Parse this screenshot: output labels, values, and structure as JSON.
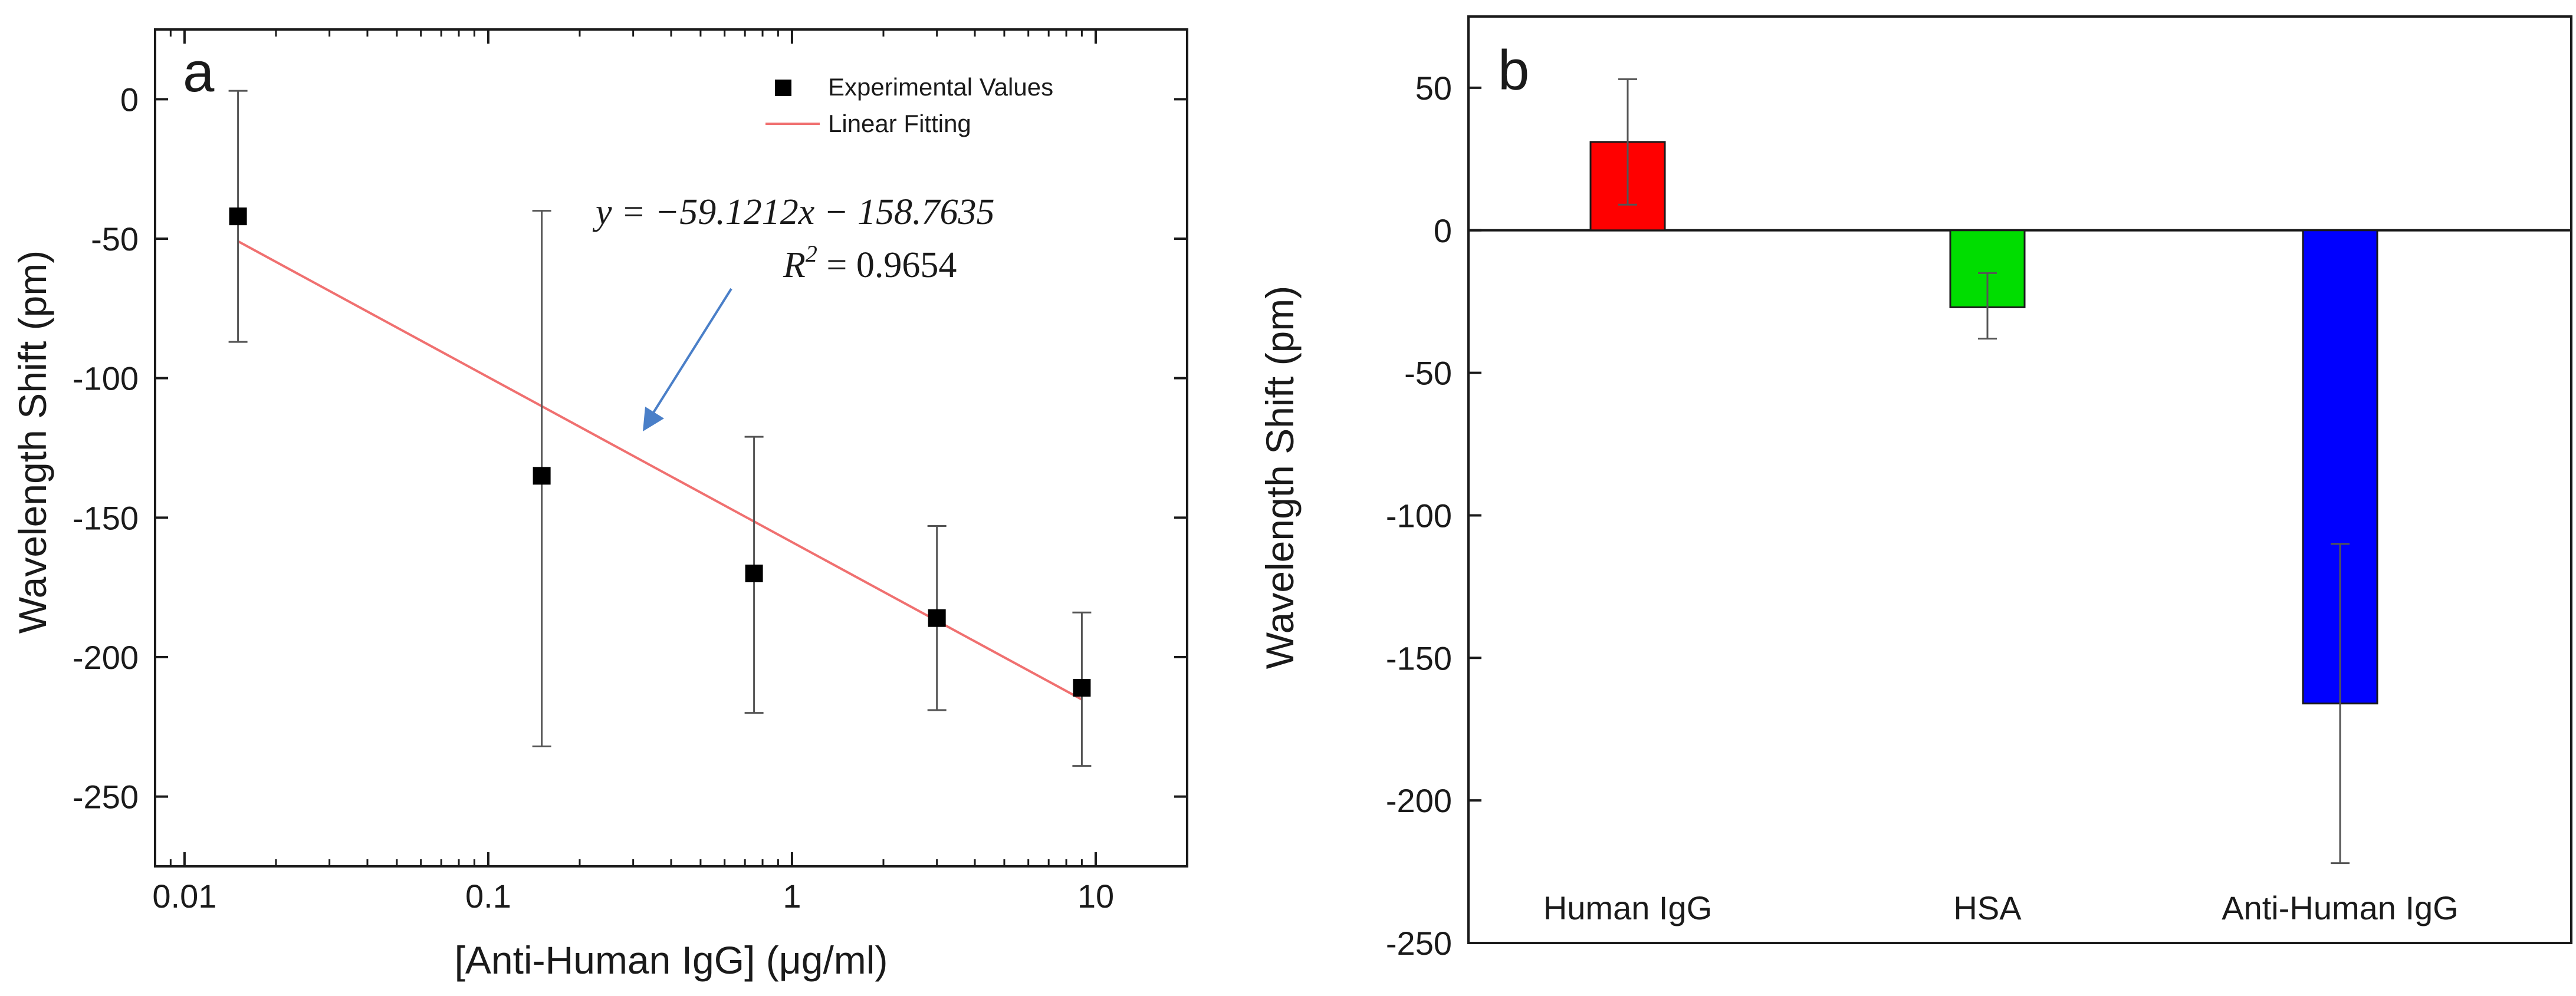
{
  "chart_data": [
    {
      "id": "a",
      "type": "scatter",
      "panel_label": "a",
      "xscale": "log",
      "xlabel": "[Anti-Human IgG] (μg/ml)",
      "ylabel": "Wavelength Shift (pm)",
      "xlim": [
        0.008,
        20
      ],
      "ylim": [
        -275,
        25
      ],
      "xticks": [
        0.01,
        0.1,
        1,
        10
      ],
      "xtick_labels": [
        "0.01",
        "0.1",
        "1",
        "10"
      ],
      "yticks": [
        0,
        -50,
        -100,
        -150,
        -200,
        -250
      ],
      "ytick_labels": [
        "0",
        "-50",
        "-100",
        "-150",
        "-200",
        "-250"
      ],
      "series": [
        {
          "name": "Experimental Values",
          "marker": "square",
          "color": "#000000",
          "points": [
            {
              "x": 0.015,
              "y": -42,
              "err_low": -87,
              "err_high": 3
            },
            {
              "x": 0.15,
              "y": -135,
              "err_low": -232,
              "err_high": -40
            },
            {
              "x": 0.75,
              "y": -170,
              "err_low": -220,
              "err_high": -121
            },
            {
              "x": 3,
              "y": -186,
              "err_low": -219,
              "err_high": -153
            },
            {
              "x": 9,
              "y": -211,
              "err_low": -239,
              "err_high": -184
            }
          ]
        },
        {
          "name": "Linear Fitting",
          "type": "line",
          "color": "#f07070",
          "x_range": [
            0.015,
            9
          ],
          "slope": -59.1212,
          "intercept": -158.7635
        }
      ],
      "annotation": {
        "equation": "y = −59.1212x − 158.7635",
        "r2_label": "R",
        "r2_exp": "2",
        "r2_value": " = 0.9654",
        "arrow_color": "#4a7fc8",
        "arrow_points_to_x": 0.32
      }
    },
    {
      "id": "b",
      "type": "bar",
      "panel_label": "b",
      "ylabel": "Wavelength Shift (pm)",
      "ylim": [
        -250,
        75
      ],
      "yticks": [
        50,
        0,
        -50,
        -100,
        -150,
        -200,
        -250
      ],
      "ytick_labels": [
        "50",
        "0",
        "-50",
        "-100",
        "-150",
        "-200",
        "-250"
      ],
      "categories": [
        "Human IgG",
        "HSA",
        "Anti-Human IgG"
      ],
      "values": [
        31,
        -27,
        -166
      ],
      "err_low": [
        9,
        -38,
        -222
      ],
      "err_high": [
        53,
        -15,
        -110
      ],
      "colors": [
        "#ff0000",
        "#00dd00",
        "#0000ff"
      ]
    }
  ]
}
